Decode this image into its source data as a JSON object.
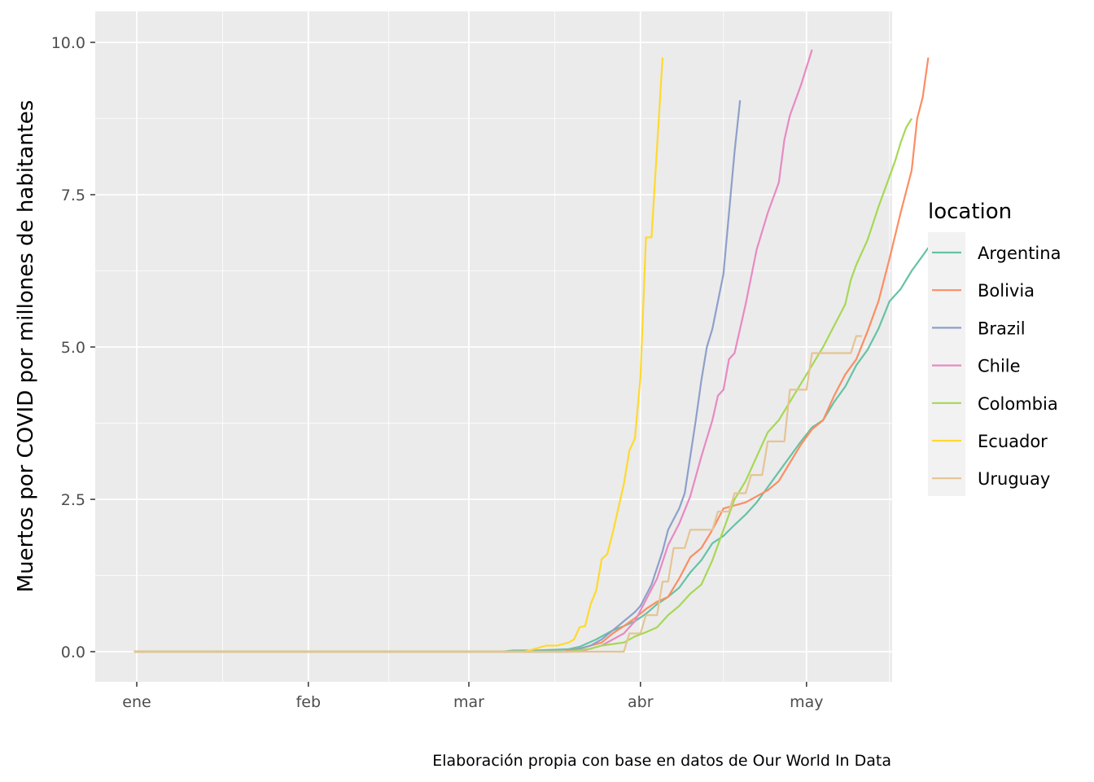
{
  "chart_data": {
    "type": "line",
    "title": "",
    "xlabel": "",
    "ylabel": "Muertos por COVID por millones de habitantes",
    "caption": "Elaboración propia con base en datos de Our World In Data",
    "x_ticks": [
      {
        "label": "ene",
        "day": 0
      },
      {
        "label": "feb",
        "day": 31
      },
      {
        "label": "mar",
        "day": 60
      },
      {
        "label": "abr",
        "day": 91
      },
      {
        "label": "may",
        "day": 121
      }
    ],
    "y_ticks": [
      "0.0",
      "2.5",
      "5.0",
      "7.5",
      "10.0"
    ],
    "xlim": [
      "2019-12-31",
      "2020-05-10"
    ],
    "ylim": [
      0,
      10
    ],
    "grid": true,
    "legend": {
      "title": "location",
      "position": "right"
    },
    "series": [
      {
        "name": "Argentina",
        "color": "#66c2a5",
        "points": [
          [
            -0.5,
            0
          ],
          [
            66,
            0
          ],
          [
            68,
            0.02
          ],
          [
            72,
            0.02
          ],
          [
            78,
            0.04
          ],
          [
            80,
            0.08
          ],
          [
            83,
            0.2
          ],
          [
            86,
            0.35
          ],
          [
            88,
            0.42
          ],
          [
            90,
            0.5
          ],
          [
            92,
            0.62
          ],
          [
            94,
            0.78
          ],
          [
            96,
            0.9
          ],
          [
            98,
            1.05
          ],
          [
            100,
            1.3
          ],
          [
            102,
            1.5
          ],
          [
            104,
            1.78
          ],
          [
            106,
            1.9
          ],
          [
            108,
            2.08
          ],
          [
            110,
            2.25
          ],
          [
            112,
            2.45
          ],
          [
            114,
            2.7
          ],
          [
            116,
            2.95
          ],
          [
            118,
            3.2
          ],
          [
            120,
            3.45
          ],
          [
            122,
            3.68
          ],
          [
            124,
            3.8
          ],
          [
            126,
            4.1
          ],
          [
            128,
            4.35
          ],
          [
            130,
            4.7
          ],
          [
            132,
            4.95
          ],
          [
            134,
            5.3
          ],
          [
            136,
            5.75
          ],
          [
            138,
            5.95
          ],
          [
            140,
            6.25
          ],
          [
            142,
            6.5
          ],
          [
            143,
            6.63
          ]
        ]
      },
      {
        "name": "Bolivia",
        "color": "#fc8d62",
        "points": [
          [
            -0.5,
            0
          ],
          [
            77,
            0
          ],
          [
            80,
            0.05
          ],
          [
            84,
            0.15
          ],
          [
            86,
            0.3
          ],
          [
            88,
            0.42
          ],
          [
            90,
            0.55
          ],
          [
            92,
            0.7
          ],
          [
            94,
            0.82
          ],
          [
            96,
            0.9
          ],
          [
            98,
            1.2
          ],
          [
            100,
            1.55
          ],
          [
            102,
            1.7
          ],
          [
            104,
            2.0
          ],
          [
            106,
            2.35
          ],
          [
            108,
            2.4
          ],
          [
            110,
            2.45
          ],
          [
            112,
            2.55
          ],
          [
            114,
            2.65
          ],
          [
            116,
            2.8
          ],
          [
            118,
            3.1
          ],
          [
            120,
            3.4
          ],
          [
            122,
            3.65
          ],
          [
            124,
            3.8
          ],
          [
            126,
            4.2
          ],
          [
            128,
            4.55
          ],
          [
            130,
            4.8
          ],
          [
            132,
            5.25
          ],
          [
            134,
            5.75
          ],
          [
            136,
            6.45
          ],
          [
            138,
            7.2
          ],
          [
            140,
            7.9
          ],
          [
            141,
            8.75
          ],
          [
            142,
            9.1
          ],
          [
            143,
            9.75
          ]
        ]
      },
      {
        "name": "Brazil",
        "color": "#8da0cb",
        "points": [
          [
            -0.5,
            0
          ],
          [
            78,
            0
          ],
          [
            80,
            0.05
          ],
          [
            82,
            0.1
          ],
          [
            84,
            0.2
          ],
          [
            86,
            0.35
          ],
          [
            88,
            0.5
          ],
          [
            90,
            0.65
          ],
          [
            91,
            0.75
          ],
          [
            93,
            1.1
          ],
          [
            95,
            1.65
          ],
          [
            96,
            2.0
          ],
          [
            98,
            2.35
          ],
          [
            99,
            2.6
          ],
          [
            100,
            3.2
          ],
          [
            101,
            3.8
          ],
          [
            102,
            4.45
          ],
          [
            103,
            5.0
          ],
          [
            104,
            5.3
          ],
          [
            105,
            5.75
          ],
          [
            106,
            6.2
          ],
          [
            107,
            7.2
          ],
          [
            108,
            8.2
          ],
          [
            109,
            9.05
          ]
        ]
      },
      {
        "name": "Chile",
        "color": "#e78ac3",
        "points": [
          [
            -0.5,
            0
          ],
          [
            80,
            0
          ],
          [
            84,
            0.1
          ],
          [
            86,
            0.2
          ],
          [
            88,
            0.3
          ],
          [
            90,
            0.5
          ],
          [
            92,
            0.85
          ],
          [
            94,
            1.2
          ],
          [
            96,
            1.75
          ],
          [
            98,
            2.1
          ],
          [
            100,
            2.55
          ],
          [
            102,
            3.2
          ],
          [
            104,
            3.8
          ],
          [
            105,
            4.2
          ],
          [
            106,
            4.3
          ],
          [
            107,
            4.8
          ],
          [
            108,
            4.9
          ],
          [
            110,
            5.7
          ],
          [
            112,
            6.6
          ],
          [
            114,
            7.2
          ],
          [
            116,
            7.7
          ],
          [
            117,
            8.4
          ],
          [
            118,
            8.8
          ],
          [
            120,
            9.3
          ],
          [
            122,
            9.88
          ]
        ]
      },
      {
        "name": "Colombia",
        "color": "#a6d854",
        "points": [
          [
            -0.5,
            0
          ],
          [
            78,
            0
          ],
          [
            82,
            0.05
          ],
          [
            84,
            0.1
          ],
          [
            88,
            0.15
          ],
          [
            90,
            0.25
          ],
          [
            92,
            0.32
          ],
          [
            94,
            0.4
          ],
          [
            96,
            0.6
          ],
          [
            98,
            0.75
          ],
          [
            100,
            0.95
          ],
          [
            102,
            1.1
          ],
          [
            104,
            1.5
          ],
          [
            106,
            2.0
          ],
          [
            108,
            2.5
          ],
          [
            110,
            2.8
          ],
          [
            112,
            3.2
          ],
          [
            114,
            3.6
          ],
          [
            116,
            3.8
          ],
          [
            118,
            4.1
          ],
          [
            120,
            4.4
          ],
          [
            122,
            4.7
          ],
          [
            124,
            5.0
          ],
          [
            126,
            5.35
          ],
          [
            128,
            5.7
          ],
          [
            129,
            6.1
          ],
          [
            130,
            6.35
          ],
          [
            132,
            6.75
          ],
          [
            134,
            7.3
          ],
          [
            136,
            7.8
          ],
          [
            137,
            8.05
          ],
          [
            138,
            8.35
          ],
          [
            139,
            8.6
          ],
          [
            140,
            8.75
          ]
        ]
      },
      {
        "name": "Ecuador",
        "color": "#ffd92f",
        "points": [
          [
            -0.5,
            0
          ],
          [
            70,
            0
          ],
          [
            72,
            0.05
          ],
          [
            74,
            0.1
          ],
          [
            76,
            0.1
          ],
          [
            78,
            0.15
          ],
          [
            79,
            0.2
          ],
          [
            80,
            0.4
          ],
          [
            81,
            0.42
          ],
          [
            82,
            0.78
          ],
          [
            83,
            1.0
          ],
          [
            84,
            1.52
          ],
          [
            85,
            1.6
          ],
          [
            86,
            1.95
          ],
          [
            87,
            2.35
          ],
          [
            88,
            2.75
          ],
          [
            89,
            3.3
          ],
          [
            90,
            3.5
          ],
          [
            91,
            4.5
          ],
          [
            92,
            6.8
          ],
          [
            93,
            6.8
          ],
          [
            95,
            9.75
          ]
        ]
      },
      {
        "name": "Uruguay",
        "color": "#e5c494",
        "points": [
          [
            -0.5,
            0
          ],
          [
            86,
            0
          ],
          [
            88,
            0
          ],
          [
            89,
            0.3
          ],
          [
            91,
            0.3
          ],
          [
            92,
            0.6
          ],
          [
            94,
            0.6
          ],
          [
            95,
            1.15
          ],
          [
            96,
            1.15
          ],
          [
            97,
            1.7
          ],
          [
            99,
            1.7
          ],
          [
            100,
            2.0
          ],
          [
            104,
            2.0
          ],
          [
            105,
            2.3
          ],
          [
            107,
            2.3
          ],
          [
            108,
            2.6
          ],
          [
            110,
            2.6
          ],
          [
            111,
            2.9
          ],
          [
            113,
            2.9
          ],
          [
            114,
            3.45
          ],
          [
            117,
            3.45
          ],
          [
            118,
            4.3
          ],
          [
            121,
            4.3
          ],
          [
            122,
            4.9
          ],
          [
            129,
            4.9
          ],
          [
            130,
            5.18
          ],
          [
            131,
            5.18
          ]
        ]
      }
    ]
  }
}
